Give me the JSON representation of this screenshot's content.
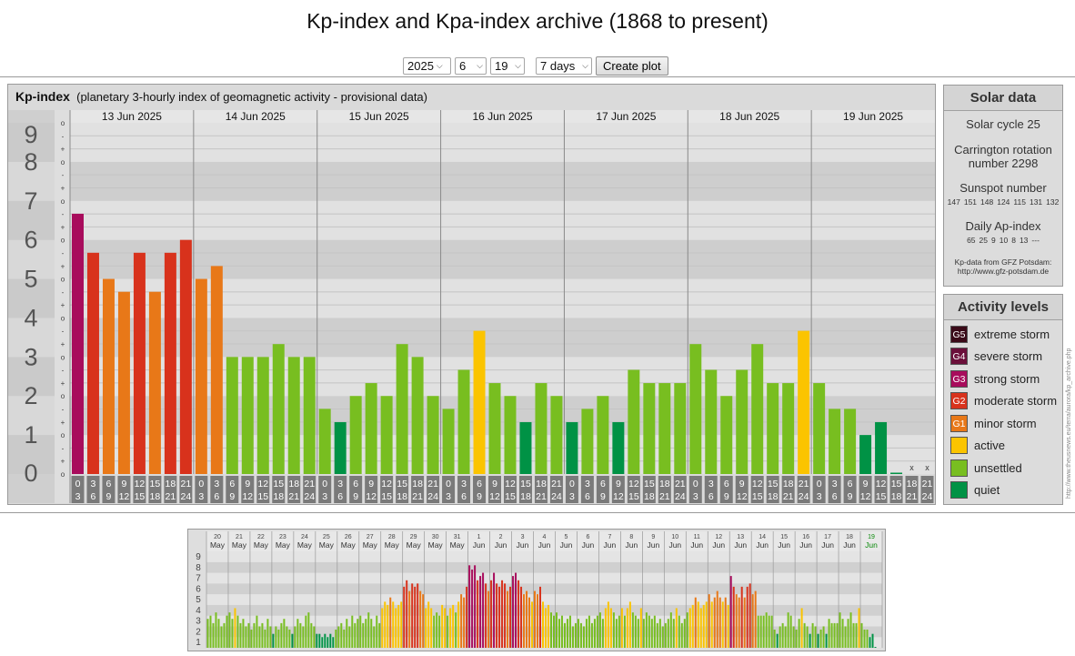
{
  "page": {
    "title": "Kp-index and Kpa-index archive (1868 to present)"
  },
  "controls": {
    "year": "2025",
    "month": "6",
    "day": "19",
    "span": "7 days",
    "button": "Create plot"
  },
  "panel": {
    "title": "Kp-index",
    "subtitle": "(planetary 3-hourly index of geomagnetic activity - provisional data)"
  },
  "solar": {
    "title": "Solar data",
    "cycle": "Solar cycle 25",
    "carrington_line1": "Carrington rotation",
    "carrington_line2": "number 2298",
    "sunspot_title": "Sunspot number",
    "sunspots": [
      "147",
      "151",
      "148",
      "124",
      "115",
      "131",
      "132"
    ],
    "ap_title": "Daily Ap-index",
    "ap": [
      "65",
      "25",
      "9",
      "10",
      "8",
      "13",
      "---"
    ],
    "credit_line1": "Kp-data from GFZ Potsdam:",
    "credit_line2": "http://www.gfz-potsdam.de"
  },
  "activity": {
    "title": "Activity levels",
    "levels": [
      {
        "code": "G5",
        "label": "extreme storm",
        "color": "#3a0a18"
      },
      {
        "code": "G4",
        "label": "severe storm",
        "color": "#6b0f3a"
      },
      {
        "code": "G3",
        "label": "strong storm",
        "color": "#a80c5c"
      },
      {
        "code": "G2",
        "label": "moderate storm",
        "color": "#d8321c"
      },
      {
        "code": "G1",
        "label": "minor storm",
        "color": "#e87818"
      },
      {
        "code": "",
        "label": "active",
        "color": "#fbc400"
      },
      {
        "code": "",
        "label": "unsettled",
        "color": "#78be20"
      },
      {
        "code": "",
        "label": "quiet",
        "color": "#009245"
      }
    ]
  },
  "side_url": "http://www.theusnews.eu/terra/aurora/kp_archive.php",
  "chart_data": [
    {
      "type": "bar",
      "ylim": [
        0,
        9
      ],
      "y_ticks": [
        "9",
        "8",
        "7",
        "6",
        "5",
        "4",
        "3",
        "2",
        "1",
        "0"
      ],
      "y_minor_labels": [
        "o",
        "-",
        "+"
      ],
      "days": [
        "13 Jun 2025",
        "14 Jun 2025",
        "15 Jun 2025",
        "16 Jun 2025",
        "17 Jun 2025",
        "18 Jun 2025",
        "19 Jun 2025"
      ],
      "interval_start": [
        "0",
        "3",
        "6",
        "9",
        "12",
        "15",
        "18",
        "21"
      ],
      "interval_end": [
        "3",
        "6",
        "9",
        "12",
        "15",
        "18",
        "21",
        "24"
      ],
      "missing_marker": "x",
      "values": [
        6.67,
        5.67,
        5.0,
        4.67,
        5.67,
        4.67,
        5.67,
        6.0,
        5.0,
        5.33,
        3.0,
        3.0,
        3.0,
        3.33,
        3.0,
        3.0,
        1.67,
        1.33,
        2.0,
        2.33,
        2.0,
        3.33,
        3.0,
        2.0,
        1.67,
        2.67,
        3.67,
        2.33,
        2.0,
        1.33,
        2.33,
        2.0,
        1.33,
        1.67,
        2.0,
        1.33,
        2.67,
        2.33,
        2.33,
        2.33,
        3.33,
        2.67,
        2.0,
        2.67,
        3.33,
        2.33,
        2.33,
        3.67,
        2.33,
        1.67,
        1.67,
        1.0,
        1.33,
        0.0,
        null,
        null
      ]
    },
    {
      "type": "bar",
      "ylim": [
        0,
        9
      ],
      "y_ticks": [
        "9",
        "8",
        "7",
        "6",
        "5",
        "4",
        "3",
        "2",
        "1"
      ],
      "day_numbers": [
        "20",
        "21",
        "22",
        "23",
        "24",
        "25",
        "26",
        "27",
        "28",
        "29",
        "30",
        "31",
        "1",
        "2",
        "3",
        "4",
        "5",
        "6",
        "7",
        "8",
        "9",
        "10",
        "11",
        "12",
        "13",
        "14",
        "15",
        "16",
        "17",
        "18",
        "19"
      ],
      "month_labels": [
        "May",
        "May",
        "May",
        "May",
        "May",
        "May",
        "May",
        "May",
        "May",
        "May",
        "May",
        "May",
        "Jun",
        "Jun",
        "Jun",
        "Jun",
        "Jun",
        "Jun",
        "Jun",
        "Jun",
        "Jun",
        "Jun",
        "Jun",
        "Jun",
        "Jun",
        "Jun",
        "Jun",
        "Jun",
        "Jun",
        "Jun",
        "Jun"
      ],
      "daily_values": [
        [
          2.7,
          3.0,
          2.3,
          3.3,
          2.7,
          2.0,
          2.3,
          3.0
        ],
        [
          3.3,
          2.7,
          3.7,
          3.0,
          2.3,
          2.7,
          2.0,
          2.3
        ],
        [
          1.7,
          2.3,
          3.0,
          2.0,
          2.3,
          1.7,
          2.7,
          2.0
        ],
        [
          1.3,
          2.0,
          1.7,
          2.3,
          2.7,
          2.0,
          1.7,
          1.3
        ],
        [
          2.0,
          2.7,
          2.3,
          2.0,
          3.0,
          3.3,
          2.3,
          2.0
        ],
        [
          1.3,
          1.3,
          1.0,
          1.3,
          1.0,
          1.3,
          1.0,
          1.7
        ],
        [
          2.0,
          2.3,
          1.7,
          2.7,
          2.0,
          3.0,
          2.3,
          2.7
        ],
        [
          3.0,
          2.3,
          2.7,
          3.3,
          2.7,
          2.0,
          3.0,
          2.3
        ],
        [
          3.7,
          4.3,
          4.0,
          4.7,
          4.3,
          3.7,
          4.0,
          4.3
        ],
        [
          5.7,
          6.3,
          5.3,
          6.0,
          5.7,
          6.0,
          5.3,
          5.0
        ],
        [
          3.7,
          4.3,
          3.7,
          3.0,
          3.3,
          3.0,
          4.0,
          3.7
        ],
        [
          3.0,
          3.7,
          4.0,
          3.3,
          4.3,
          5.0,
          4.7,
          5.7
        ],
        [
          7.7,
          7.3,
          7.7,
          6.3,
          6.7,
          7.0,
          6.0,
          5.3
        ],
        [
          6.3,
          7.0,
          6.0,
          5.7,
          6.3,
          6.0,
          5.3,
          5.7
        ],
        [
          6.7,
          7.0,
          6.3,
          5.7,
          5.0,
          5.3,
          4.7,
          4.3
        ],
        [
          5.3,
          5.0,
          5.7,
          4.3,
          3.7,
          4.0,
          3.3,
          3.0
        ],
        [
          3.3,
          2.7,
          3.0,
          2.3,
          2.7,
          3.0,
          2.0,
          2.3
        ],
        [
          2.7,
          2.3,
          2.0,
          2.7,
          3.0,
          2.3,
          2.7,
          3.0
        ],
        [
          3.3,
          2.7,
          3.7,
          4.3,
          3.7,
          3.3,
          2.7,
          3.0
        ],
        [
          3.7,
          3.0,
          3.7,
          4.3,
          3.3,
          3.0,
          2.7,
          3.7
        ],
        [
          2.7,
          3.3,
          3.0,
          2.7,
          3.0,
          2.3,
          2.7,
          2.0
        ],
        [
          2.3,
          2.7,
          3.3,
          2.7,
          3.7,
          3.0,
          2.3,
          2.7
        ],
        [
          3.3,
          3.7,
          4.0,
          4.7,
          4.3,
          3.7,
          4.0,
          4.3
        ],
        [
          5.0,
          4.3,
          4.7,
          5.3,
          4.7,
          4.3,
          4.7,
          4.0
        ],
        [
          6.7,
          5.7,
          5.0,
          4.7,
          5.7,
          4.7,
          5.7,
          6.0
        ],
        [
          5.0,
          5.3,
          3.0,
          3.0,
          3.0,
          3.3,
          3.0,
          3.0
        ],
        [
          1.7,
          1.3,
          2.0,
          2.3,
          2.0,
          3.3,
          3.0,
          2.0
        ],
        [
          1.7,
          2.7,
          3.7,
          2.3,
          2.0,
          1.3,
          2.3,
          2.0
        ],
        [
          1.3,
          1.7,
          2.0,
          1.3,
          2.7,
          2.3,
          2.3,
          2.3
        ],
        [
          3.3,
          2.7,
          2.0,
          2.7,
          3.3,
          2.3,
          2.3,
          3.7
        ],
        [
          2.3,
          1.7,
          1.7,
          1.0,
          1.3,
          0.0,
          null,
          null
        ]
      ]
    }
  ]
}
